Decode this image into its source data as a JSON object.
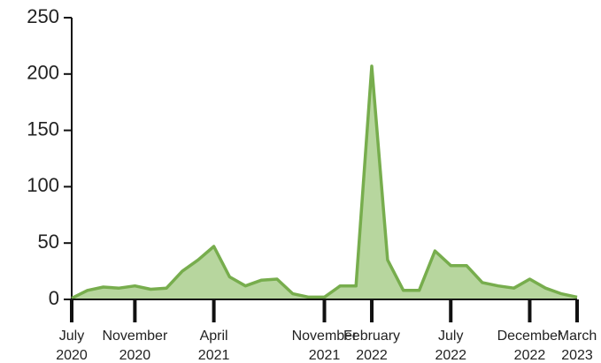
{
  "chart_data": {
    "type": "area",
    "x": [
      "2020-07",
      "2020-08",
      "2020-09",
      "2020-10",
      "2020-11",
      "2020-12",
      "2021-01",
      "2021-02",
      "2021-03",
      "2021-04",
      "2021-05",
      "2021-06",
      "2021-07",
      "2021-08",
      "2021-09",
      "2021-10",
      "2021-11",
      "2021-12",
      "2022-01",
      "2022-02",
      "2022-03",
      "2022-04",
      "2022-05",
      "2022-06",
      "2022-07",
      "2022-08",
      "2022-09",
      "2022-10",
      "2022-11",
      "2022-12",
      "2023-01",
      "2023-02",
      "2023-03"
    ],
    "values": [
      1,
      8,
      11,
      10,
      12,
      9,
      10,
      25,
      35,
      47,
      20,
      12,
      17,
      18,
      5,
      2,
      2,
      12,
      12,
      207,
      35,
      8,
      8,
      43,
      30,
      30,
      15,
      12,
      10,
      18,
      10,
      5,
      2
    ],
    "color": "#77ad4d",
    "fill": "#b7d69e",
    "xlim": [
      "2020-07",
      "2023-03"
    ],
    "xticks": [
      {
        "value": "2020-07",
        "label": "July 2020"
      },
      {
        "value": "2020-11",
        "label": "November 2020"
      },
      {
        "value": "2021-04",
        "label": "April 2021"
      },
      {
        "value": "2021-11",
        "label": "November 2021"
      },
      {
        "value": "2022-02",
        "label": "February 2022"
      },
      {
        "value": "2022-07",
        "label": "July 2022"
      },
      {
        "value": "2022-12",
        "label": "December 2022"
      },
      {
        "value": "2023-03",
        "label": "March 2023"
      }
    ],
    "ylim": [
      0,
      250
    ],
    "yticks": [
      0,
      50,
      100,
      150,
      200,
      250
    ]
  }
}
